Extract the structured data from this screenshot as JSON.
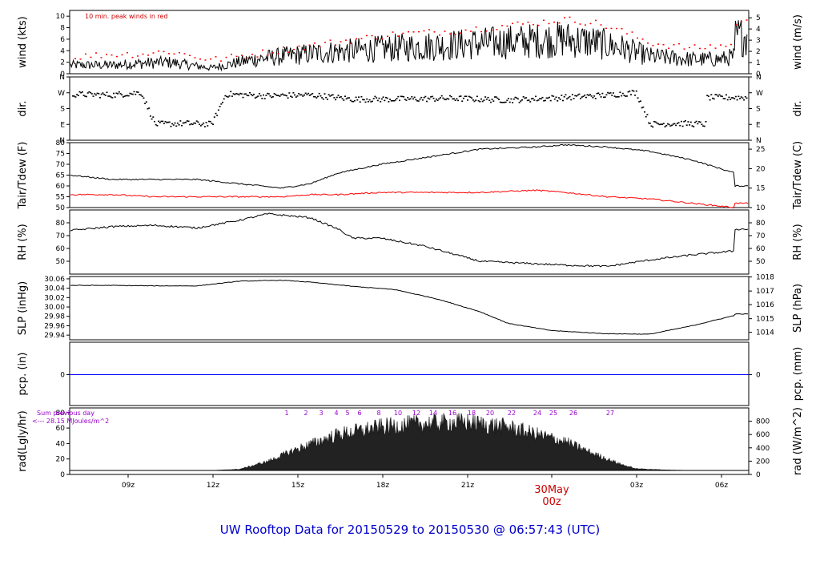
{
  "title": "UW Rooftop Data for 20150529  to  20150530 @ 06:57:43  (UTC)",
  "colors": {
    "frame": "#000000",
    "series": "#000000",
    "peaks": "#ff0000",
    "dewpoint": "#ff0000",
    "precip": "#0000ff",
    "title": "#0000cc",
    "date_label": "#cc0000",
    "radiation_annotation": "#9900cc"
  },
  "x_axis": {
    "ticks": [
      "09z",
      "12z",
      "15z",
      "18z",
      "21z",
      "00z",
      "03z",
      "06z"
    ],
    "date_label": "30May",
    "date_label_hour": "00z"
  },
  "chart_data": [
    {
      "type": "line",
      "panel": "wind",
      "ylabel_left": "wind (kts)",
      "ylabel_right": "wind (m/s)",
      "annotation": "10 min. peak winds in red",
      "ylim": [
        0,
        11
      ],
      "yticks_left": [
        "0",
        "2",
        "4",
        "6",
        "8",
        "10"
      ],
      "yticks_right": [
        "0",
        "1",
        "2",
        "3",
        "4",
        "5"
      ],
      "x": [
        "06:30z",
        "08:00z",
        "09:00z",
        "10:00z",
        "11:30z",
        "13:00z",
        "15:00z",
        "16:30z",
        "18:00z",
        "20:00z",
        "22:00z",
        "00:00z",
        "01:00z",
        "02:00z",
        "03:00z",
        "04:30z",
        "05:30z",
        "06:00z",
        "06:30z",
        "06:57z"
      ],
      "series": [
        {
          "values": [
            1.5,
            1.5,
            1.8,
            2.0,
            1.0,
            2.5,
            3.5,
            4.0,
            4.5,
            5.0,
            5.5,
            6.0,
            5.5,
            4.5,
            3.0,
            2.5,
            2.5,
            3.0,
            8.0,
            6.5
          ]
        },
        {
          "values": [
            3.0,
            3.5,
            3.5,
            4.0,
            2.5,
            3.5,
            5.0,
            6.0,
            7.0,
            7.5,
            8.5,
            9.5,
            9.0,
            7.5,
            5.5,
            4.5,
            5.0,
            5.0,
            10.5,
            9.0
          ]
        }
      ]
    },
    {
      "type": "scatter",
      "panel": "direction",
      "ylabel_left": "dir.",
      "ylabel_right": "dir.",
      "yticks_left": [
        "N",
        "W",
        "S",
        "E",
        "N"
      ],
      "yticks_right": [
        "N",
        "W",
        "S",
        "E",
        "N"
      ],
      "ylim": [
        0,
        360
      ],
      "x": [
        "06:30z",
        "08:00z",
        "09:00z",
        "09:30z",
        "10:30z",
        "11:30z",
        "12:00z",
        "13:30z",
        "15:00z",
        "16:30z",
        "18:00z",
        "20:00z",
        "22:00z",
        "00:00z",
        "01:30z",
        "02:30z",
        "03:00z",
        "04:00z",
        "05:00z",
        "06:30z"
      ],
      "values": [
        270,
        265,
        280,
        90,
        95,
        90,
        270,
        260,
        265,
        240,
        240,
        245,
        235,
        250,
        265,
        280,
        90,
        95,
        90,
        250
      ]
    },
    {
      "type": "line",
      "panel": "temperature",
      "ylabel_left": "Tair/Tdew (F)",
      "ylabel_right": "Tair/Tdew (C)",
      "ylim": [
        50,
        80
      ],
      "yticks_left": [
        "50",
        "55",
        "60",
        "65",
        "70",
        "75",
        "80"
      ],
      "yticks_right": [
        "10",
        "15",
        "20",
        "25"
      ],
      "x": [
        "06:30z",
        "08:00z",
        "09:30z",
        "11:00z",
        "12:30z",
        "14:00z",
        "15:00z",
        "16:00z",
        "17:30z",
        "19:00z",
        "21:00z",
        "23:00z",
        "00:00z",
        "01:30z",
        "03:00z",
        "04:30z",
        "06:00z",
        "06:57z"
      ],
      "series": [
        {
          "values": [
            65,
            63,
            63,
            63,
            61,
            59,
            61,
            66,
            70,
            73,
            77,
            78,
            79,
            78,
            76,
            72,
            66,
            60
          ]
        },
        {
          "values": [
            56,
            56,
            55,
            55,
            55,
            55,
            56,
            56,
            57,
            57,
            57,
            58,
            57,
            55,
            54,
            52,
            50,
            52
          ]
        }
      ]
    },
    {
      "type": "line",
      "panel": "humidity",
      "ylabel_left": "RH (%)",
      "ylabel_right": "RH (%)",
      "ylim": [
        40,
        90
      ],
      "yticks_left": [
        "50",
        "60",
        "70",
        "80"
      ],
      "yticks_right": [
        "50",
        "60",
        "70",
        "80"
      ],
      "x": [
        "06:30z",
        "08:00z",
        "09:30z",
        "11:00z",
        "12:30z",
        "13:30z",
        "15:00z",
        "16:00z",
        "16:30z",
        "17:30z",
        "19:00z",
        "21:00z",
        "23:00z",
        "00:00z",
        "01:30z",
        "03:00z",
        "04:30z",
        "06:00z",
        "06:57z"
      ],
      "values": [
        74,
        77,
        78,
        76,
        82,
        87,
        84,
        75,
        68,
        68,
        62,
        50,
        48,
        47,
        46,
        51,
        55,
        58,
        75
      ]
    },
    {
      "type": "line",
      "panel": "pressure",
      "ylabel_left": "SLP (inHg)",
      "ylabel_right": "SLP (hPa)",
      "ylim": [
        29.93,
        30.065
      ],
      "yticks_left": [
        "29.94",
        "29.96",
        "29.98",
        "30.00",
        "30.02",
        "30.04",
        "30.06"
      ],
      "yticks_right": [
        "1014",
        "1015",
        "1016",
        "1017",
        "1018"
      ],
      "x": [
        "06:30z",
        "08:00z",
        "09:30z",
        "11:00z",
        "12:30z",
        "14:00z",
        "15:00z",
        "16:30z",
        "18:00z",
        "19:30z",
        "21:00z",
        "22:00z",
        "23:30z",
        "00:00z",
        "01:30z",
        "03:00z",
        "04:30z",
        "06:00z",
        "06:57z"
      ],
      "values": [
        30.046,
        30.046,
        30.045,
        30.045,
        30.055,
        30.057,
        30.053,
        30.044,
        30.037,
        30.017,
        29.99,
        29.965,
        29.95,
        29.948,
        29.943,
        29.942,
        29.96,
        29.982,
        29.985
      ]
    },
    {
      "type": "line",
      "panel": "precipitation",
      "ylabel_left": "pcp. (in)",
      "ylabel_right": "pcp. (mm)",
      "yticks_left": [
        "0"
      ],
      "yticks_right": [
        "0"
      ],
      "x": [
        "06:30z",
        "06:57z"
      ],
      "values": [
        0,
        0
      ]
    },
    {
      "type": "area",
      "panel": "radiation",
      "ylabel_left": "rad(Lgly/hr)",
      "ylabel_right": "rad (W/m^2)",
      "annotation_1": "Sum previous day",
      "annotation_2": "<--- 28.15 MJoules/m^2",
      "ylim": [
        0,
        80
      ],
      "yticks_left": [
        "0",
        "20",
        "40",
        "60",
        "80"
      ],
      "yticks_right": [
        "0",
        "200",
        "400",
        "600",
        "800"
      ],
      "hour_markers": [
        "1",
        "2",
        "3",
        "4",
        "5",
        "6",
        "8",
        "10",
        "12",
        "14",
        "16",
        "18",
        "20",
        "22",
        "24",
        "25",
        "26",
        "27"
      ],
      "x": [
        "06:30z",
        "11:30z",
        "12:30z",
        "13:30z",
        "14:30z",
        "16:00z",
        "17:30z",
        "19:00z",
        "20:30z",
        "22:00z",
        "00:00z",
        "01:00z",
        "02:00z",
        "02:30z",
        "03:30z",
        "04:30z",
        "06:57z"
      ],
      "values": [
        0,
        0,
        2,
        15,
        35,
        60,
        72,
        78,
        80,
        72,
        48,
        28,
        10,
        3,
        1,
        0,
        0
      ]
    }
  ]
}
